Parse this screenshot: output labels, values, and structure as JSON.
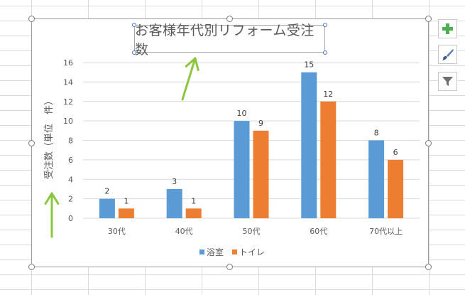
{
  "chart_data": {
    "type": "bar",
    "title": "お客様年代別リフォーム受注数",
    "ylabel": "受注数（単位　件）",
    "xlabel": "",
    "categories": [
      "30代",
      "40代",
      "50代",
      "60代",
      "70代以上"
    ],
    "series": [
      {
        "name": "浴室",
        "values": [
          2,
          3,
          10,
          15,
          8
        ],
        "color": "#5b9bd5"
      },
      {
        "name": "トイレ",
        "values": [
          1,
          1,
          9,
          12,
          6
        ],
        "color": "#ed7d31"
      }
    ],
    "ylim": [
      0,
      16
    ],
    "yticks": [
      0,
      2,
      4,
      6,
      8,
      10,
      12,
      14,
      16
    ],
    "grid": true,
    "legend_position": "bottom",
    "data_labels": true
  },
  "colors": {
    "arrow": "#8cc63f",
    "gridline": "#d9d9d9",
    "plus_icon": "#4caf50"
  },
  "icons": {
    "add_elements": "plus-icon",
    "chart_styles": "brush-icon",
    "chart_filters": "filter-icon",
    "annotation_arrows": "arrow-up-icon"
  }
}
